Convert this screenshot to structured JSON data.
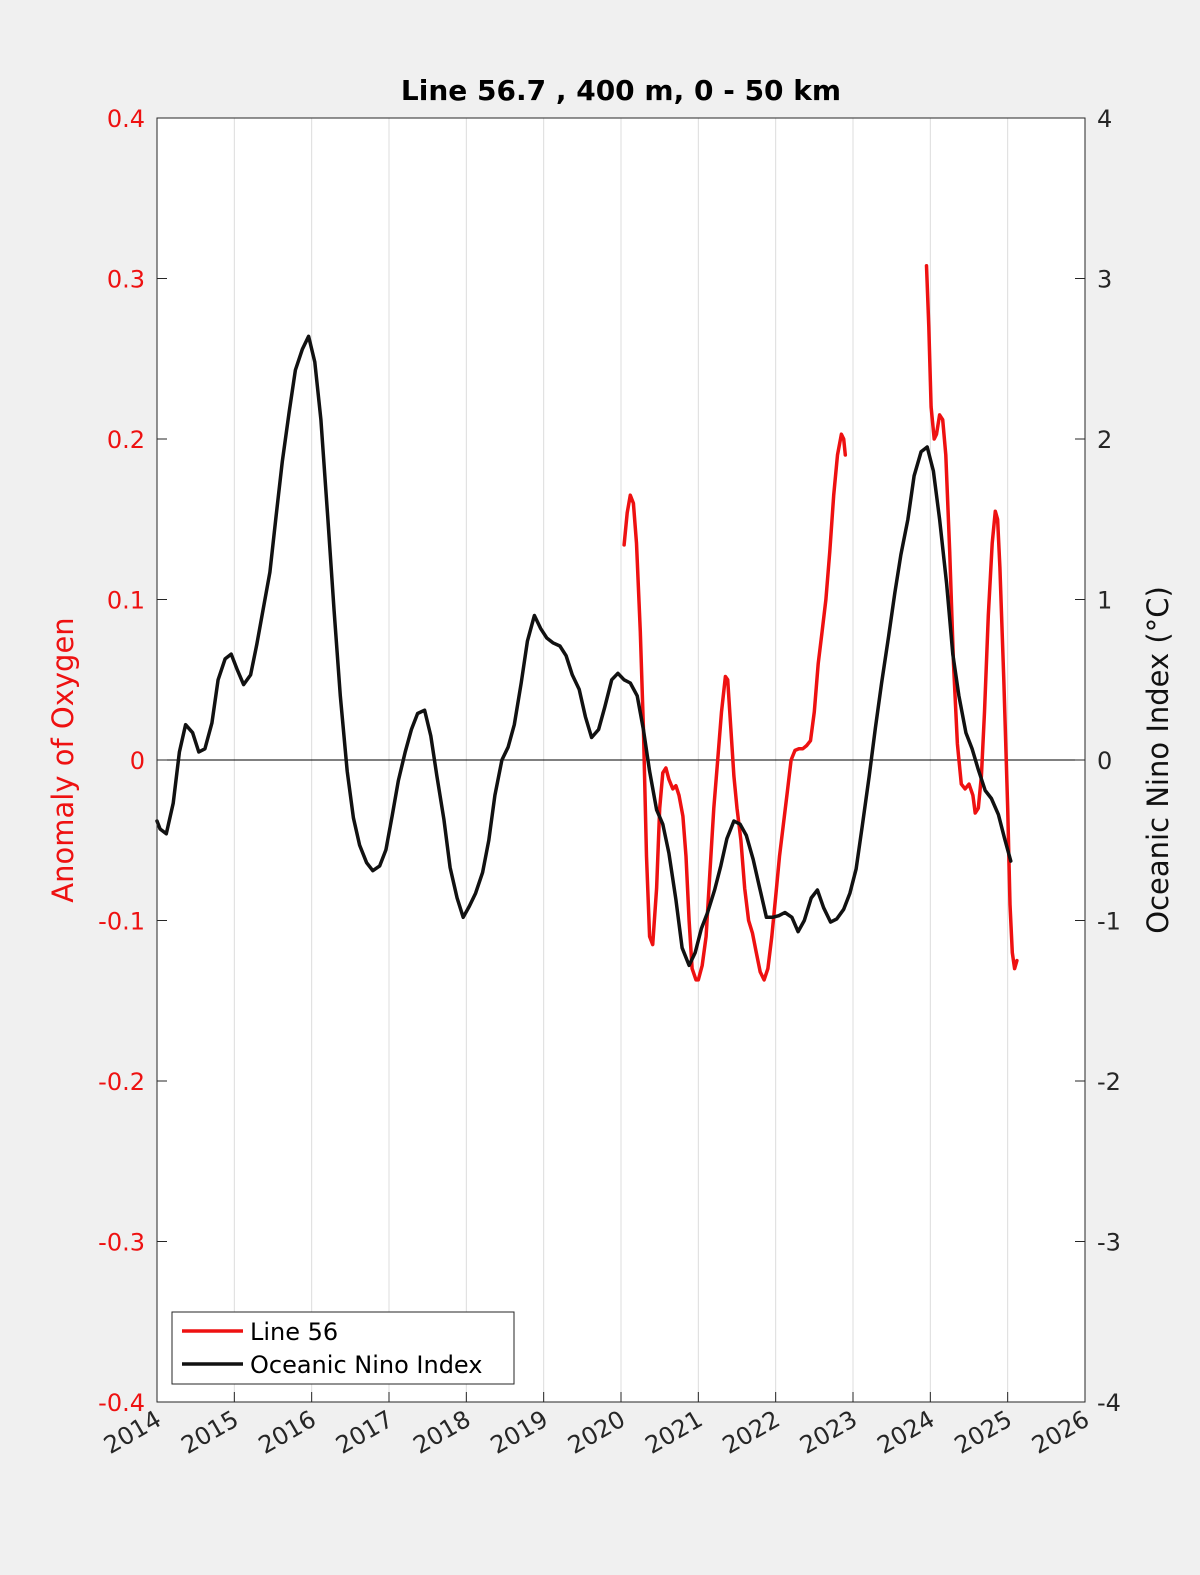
{
  "chart_data": {
    "type": "line",
    "title": "Line 56.7 , 400 m, 0 - 50 km",
    "xlabel": "",
    "ylabel_left": "Anomaly of Oxygen",
    "ylabel_right": "Oceanic Nino Index (°C)",
    "xlim": [
      2014,
      2026
    ],
    "ylim_left": [
      -0.4,
      0.4
    ],
    "ylim_right": [
      -4,
      4
    ],
    "x_ticks": [
      2014,
      2015,
      2016,
      2017,
      2018,
      2019,
      2020,
      2021,
      2022,
      2023,
      2024,
      2025,
      2026
    ],
    "x_tick_labels": [
      "2014",
      "2015",
      "2016",
      "2017",
      "2018",
      "2019",
      "2020",
      "2021",
      "2022",
      "2023",
      "2024",
      "2025",
      "2026"
    ],
    "y_ticks_left": [
      0.4,
      0.3,
      0.2,
      0.1,
      0,
      -0.1,
      -0.2,
      -0.3,
      -0.4
    ],
    "y_tick_labels_left": [
      "0.4",
      "0.3",
      "0.2",
      "0.1",
      "0",
      "-0.1",
      "-0.2",
      "-0.3",
      "-0.4"
    ],
    "y_ticks_right": [
      4,
      3,
      2,
      1,
      0,
      -1,
      -2,
      -3,
      -4
    ],
    "y_tick_labels_right": [
      "4",
      "3",
      "2",
      "1",
      "0",
      "-1",
      "-2",
      "-3",
      "-4"
    ],
    "grid": "vertical",
    "zero_line": true,
    "legend_position": "bottom-left",
    "colors": {
      "left_axis": "#ee1111",
      "right_axis": "#111111",
      "background": "#f0f0f0",
      "plot_bg": "#ffffff"
    },
    "series": [
      {
        "name": "Line 56",
        "axis": "left",
        "color": "#ee1111",
        "segments": [
          [
            [
              2020.04,
              0.134
            ],
            [
              2020.08,
              0.154
            ],
            [
              2020.12,
              0.165
            ],
            [
              2020.16,
              0.16
            ],
            [
              2020.2,
              0.135
            ],
            [
              2020.25,
              0.08
            ],
            [
              2020.29,
              0.02
            ],
            [
              2020.33,
              -0.06
            ],
            [
              2020.37,
              -0.11
            ],
            [
              2020.41,
              -0.115
            ],
            [
              2020.46,
              -0.08
            ],
            [
              2020.5,
              -0.03
            ],
            [
              2020.54,
              -0.008
            ],
            [
              2020.58,
              -0.005
            ],
            [
              2020.62,
              -0.012
            ],
            [
              2020.67,
              -0.018
            ],
            [
              2020.71,
              -0.016
            ],
            [
              2020.75,
              -0.022
            ],
            [
              2020.8,
              -0.035
            ],
            [
              2020.84,
              -0.06
            ],
            [
              2020.88,
              -0.1
            ],
            [
              2020.92,
              -0.13
            ],
            [
              2020.97,
              -0.137
            ],
            [
              2021.0,
              -0.137
            ],
            [
              2021.05,
              -0.128
            ],
            [
              2021.1,
              -0.11
            ],
            [
              2021.15,
              -0.07
            ],
            [
              2021.2,
              -0.03
            ],
            [
              2021.25,
              0.0
            ],
            [
              2021.3,
              0.03
            ],
            [
              2021.35,
              0.052
            ],
            [
              2021.38,
              0.05
            ],
            [
              2021.42,
              0.02
            ],
            [
              2021.46,
              -0.01
            ],
            [
              2021.5,
              -0.03
            ],
            [
              2021.55,
              -0.05
            ],
            [
              2021.6,
              -0.08
            ],
            [
              2021.65,
              -0.1
            ],
            [
              2021.7,
              -0.108
            ],
            [
              2021.75,
              -0.12
            ],
            [
              2021.8,
              -0.132
            ],
            [
              2021.85,
              -0.137
            ],
            [
              2021.9,
              -0.13
            ],
            [
              2021.95,
              -0.11
            ],
            [
              2022.0,
              -0.085
            ],
            [
              2022.05,
              -0.06
            ],
            [
              2022.1,
              -0.04
            ],
            [
              2022.15,
              -0.02
            ],
            [
              2022.2,
              0.0
            ],
            [
              2022.25,
              0.006
            ],
            [
              2022.3,
              0.007
            ],
            [
              2022.35,
              0.007
            ],
            [
              2022.4,
              0.009
            ],
            [
              2022.45,
              0.012
            ],
            [
              2022.5,
              0.03
            ],
            [
              2022.55,
              0.06
            ],
            [
              2022.6,
              0.08
            ],
            [
              2022.65,
              0.1
            ],
            [
              2022.7,
              0.13
            ],
            [
              2022.75,
              0.165
            ],
            [
              2022.8,
              0.19
            ],
            [
              2022.85,
              0.203
            ],
            [
              2022.88,
              0.2
            ],
            [
              2022.9,
              0.19
            ]
          ],
          [
            [
              2023.95,
              0.308
            ],
            [
              2023.98,
              0.27
            ],
            [
              2024.01,
              0.22
            ],
            [
              2024.05,
              0.2
            ],
            [
              2024.08,
              0.203
            ],
            [
              2024.12,
              0.215
            ],
            [
              2024.16,
              0.212
            ],
            [
              2024.2,
              0.19
            ],
            [
              2024.25,
              0.13
            ],
            [
              2024.3,
              0.06
            ],
            [
              2024.35,
              0.01
            ],
            [
              2024.4,
              -0.015
            ],
            [
              2024.45,
              -0.018
            ],
            [
              2024.5,
              -0.015
            ],
            [
              2024.55,
              -0.022
            ],
            [
              2024.58,
              -0.033
            ],
            [
              2024.62,
              -0.03
            ],
            [
              2024.66,
              -0.01
            ],
            [
              2024.7,
              0.03
            ],
            [
              2024.75,
              0.09
            ],
            [
              2024.8,
              0.135
            ],
            [
              2024.84,
              0.155
            ],
            [
              2024.87,
              0.15
            ],
            [
              2024.9,
              0.12
            ],
            [
              2024.95,
              0.05
            ],
            [
              2025.0,
              -0.03
            ],
            [
              2025.03,
              -0.09
            ],
            [
              2025.06,
              -0.12
            ],
            [
              2025.09,
              -0.13
            ],
            [
              2025.12,
              -0.125
            ]
          ]
        ]
      },
      {
        "name": "Oceanic Nino Index",
        "axis": "right",
        "color": "#111111",
        "segments": [
          [
            [
              2014.0,
              -0.38
            ],
            [
              2014.04,
              -0.43
            ],
            [
              2014.12,
              -0.46
            ],
            [
              2014.21,
              -0.27
            ],
            [
              2014.29,
              0.05
            ],
            [
              2014.37,
              0.22
            ],
            [
              2014.46,
              0.17
            ],
            [
              2014.54,
              0.05
            ],
            [
              2014.62,
              0.07
            ],
            [
              2014.71,
              0.23
            ],
            [
              2014.79,
              0.5
            ],
            [
              2014.88,
              0.63
            ],
            [
              2014.96,
              0.66
            ],
            [
              2015.04,
              0.56
            ],
            [
              2015.12,
              0.47
            ],
            [
              2015.21,
              0.53
            ],
            [
              2015.29,
              0.72
            ],
            [
              2015.37,
              0.93
            ],
            [
              2015.46,
              1.17
            ],
            [
              2015.54,
              1.52
            ],
            [
              2015.62,
              1.86
            ],
            [
              2015.71,
              2.17
            ],
            [
              2015.79,
              2.43
            ],
            [
              2015.88,
              2.56
            ],
            [
              2015.96,
              2.64
            ],
            [
              2016.04,
              2.48
            ],
            [
              2016.12,
              2.12
            ],
            [
              2016.21,
              1.5
            ],
            [
              2016.29,
              0.93
            ],
            [
              2016.37,
              0.4
            ],
            [
              2016.46,
              -0.07
            ],
            [
              2016.54,
              -0.36
            ],
            [
              2016.62,
              -0.53
            ],
            [
              2016.71,
              -0.64
            ],
            [
              2016.79,
              -0.69
            ],
            [
              2016.88,
              -0.66
            ],
            [
              2016.96,
              -0.56
            ],
            [
              2017.04,
              -0.35
            ],
            [
              2017.12,
              -0.13
            ],
            [
              2017.21,
              0.05
            ],
            [
              2017.29,
              0.19
            ],
            [
              2017.37,
              0.29
            ],
            [
              2017.46,
              0.31
            ],
            [
              2017.54,
              0.15
            ],
            [
              2017.62,
              -0.1
            ],
            [
              2017.71,
              -0.37
            ],
            [
              2017.79,
              -0.67
            ],
            [
              2017.88,
              -0.86
            ],
            [
              2017.96,
              -0.98
            ],
            [
              2018.04,
              -0.91
            ],
            [
              2018.12,
              -0.83
            ],
            [
              2018.21,
              -0.7
            ],
            [
              2018.29,
              -0.5
            ],
            [
              2018.37,
              -0.22
            ],
            [
              2018.46,
              0.0
            ],
            [
              2018.54,
              0.08
            ],
            [
              2018.62,
              0.22
            ],
            [
              2018.71,
              0.48
            ],
            [
              2018.79,
              0.74
            ],
            [
              2018.88,
              0.9
            ],
            [
              2018.96,
              0.82
            ],
            [
              2019.04,
              0.76
            ],
            [
              2019.12,
              0.73
            ],
            [
              2019.21,
              0.71
            ],
            [
              2019.29,
              0.65
            ],
            [
              2019.37,
              0.53
            ],
            [
              2019.46,
              0.44
            ],
            [
              2019.54,
              0.27
            ],
            [
              2019.62,
              0.14
            ],
            [
              2019.71,
              0.19
            ],
            [
              2019.79,
              0.33
            ],
            [
              2019.88,
              0.5
            ],
            [
              2019.96,
              0.54
            ],
            [
              2020.04,
              0.5
            ],
            [
              2020.12,
              0.48
            ],
            [
              2020.21,
              0.4
            ],
            [
              2020.29,
              0.19
            ],
            [
              2020.37,
              -0.07
            ],
            [
              2020.46,
              -0.31
            ],
            [
              2020.54,
              -0.4
            ],
            [
              2020.62,
              -0.58
            ],
            [
              2020.71,
              -0.87
            ],
            [
              2020.79,
              -1.17
            ],
            [
              2020.88,
              -1.28
            ],
            [
              2020.96,
              -1.2
            ],
            [
              2021.04,
              -1.05
            ],
            [
              2021.12,
              -0.95
            ],
            [
              2021.21,
              -0.81
            ],
            [
              2021.29,
              -0.66
            ],
            [
              2021.37,
              -0.49
            ],
            [
              2021.46,
              -0.38
            ],
            [
              2021.54,
              -0.4
            ],
            [
              2021.62,
              -0.47
            ],
            [
              2021.71,
              -0.62
            ],
            [
              2021.79,
              -0.79
            ],
            [
              2021.88,
              -0.98
            ],
            [
              2021.96,
              -0.98
            ],
            [
              2022.04,
              -0.97
            ],
            [
              2022.12,
              -0.95
            ],
            [
              2022.21,
              -0.98
            ],
            [
              2022.29,
              -1.07
            ],
            [
              2022.37,
              -1.0
            ],
            [
              2022.46,
              -0.86
            ],
            [
              2022.54,
              -0.81
            ],
            [
              2022.62,
              -0.92
            ],
            [
              2022.71,
              -1.01
            ],
            [
              2022.79,
              -0.99
            ],
            [
              2022.88,
              -0.93
            ],
            [
              2022.96,
              -0.83
            ],
            [
              2023.04,
              -0.68
            ],
            [
              2023.12,
              -0.41
            ],
            [
              2023.21,
              -0.1
            ],
            [
              2023.29,
              0.2
            ],
            [
              2023.37,
              0.48
            ],
            [
              2023.46,
              0.77
            ],
            [
              2023.54,
              1.04
            ],
            [
              2023.62,
              1.28
            ],
            [
              2023.71,
              1.5
            ],
            [
              2023.79,
              1.77
            ],
            [
              2023.88,
              1.92
            ],
            [
              2023.96,
              1.95
            ],
            [
              2024.04,
              1.8
            ],
            [
              2024.12,
              1.5
            ],
            [
              2024.21,
              1.1
            ],
            [
              2024.29,
              0.66
            ],
            [
              2024.37,
              0.4
            ],
            [
              2024.46,
              0.17
            ],
            [
              2024.54,
              0.07
            ],
            [
              2024.62,
              -0.06
            ],
            [
              2024.71,
              -0.19
            ],
            [
              2024.79,
              -0.24
            ],
            [
              2024.88,
              -0.34
            ],
            [
              2024.96,
              -0.49
            ],
            [
              2025.04,
              -0.63
            ]
          ]
        ]
      }
    ]
  }
}
